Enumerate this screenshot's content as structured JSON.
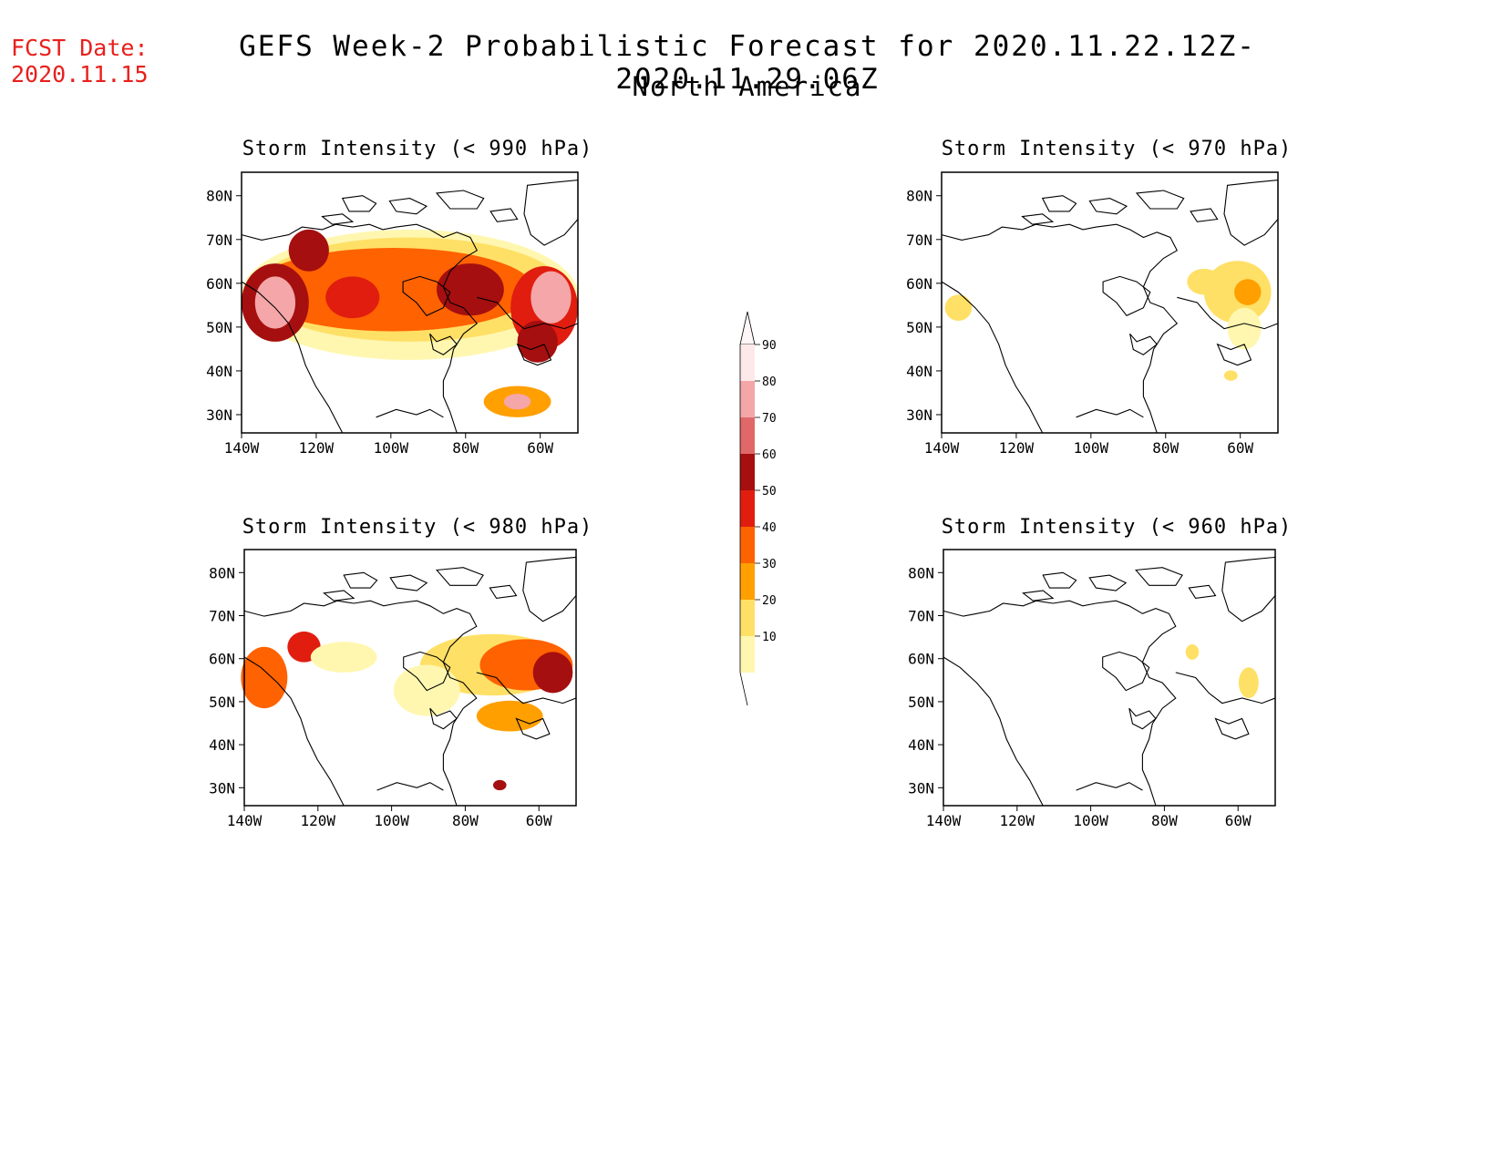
{
  "header": {
    "fcst_label": "FCST Date:",
    "fcst_date": "2020.11.15",
    "title": "GEFS Week-2 Probabilistic Forecast for 2020.11.22.12Z-2020.11.29.06Z",
    "subtitle": "North America"
  },
  "axes": {
    "lat_labels": [
      "80N",
      "70N",
      "60N",
      "50N",
      "40N",
      "30N"
    ],
    "lon_labels": [
      "140W",
      "120W",
      "100W",
      "80W",
      "60W"
    ]
  },
  "colorbar": {
    "levels": [
      "90",
      "80",
      "70",
      "60",
      "50",
      "40",
      "30",
      "20",
      "10"
    ],
    "colors": [
      "#fde9ea",
      "#f4a6a8",
      "#e06868",
      "#a50f0f",
      "#e01d0f",
      "#ff6200",
      "#ff9f00",
      "#ffe066",
      "#fff7b0"
    ]
  },
  "panels": [
    {
      "id": "p990",
      "title": "Storm Intensity (< 990 hPa)",
      "intensity": "high"
    },
    {
      "id": "p970",
      "title": "Storm Intensity (< 970 hPa)",
      "intensity": "low"
    },
    {
      "id": "p980",
      "title": "Storm Intensity (< 980 hPa)",
      "intensity": "medium"
    },
    {
      "id": "p960",
      "title": "Storm Intensity (< 960 hPa)",
      "intensity": "minimal"
    }
  ]
}
